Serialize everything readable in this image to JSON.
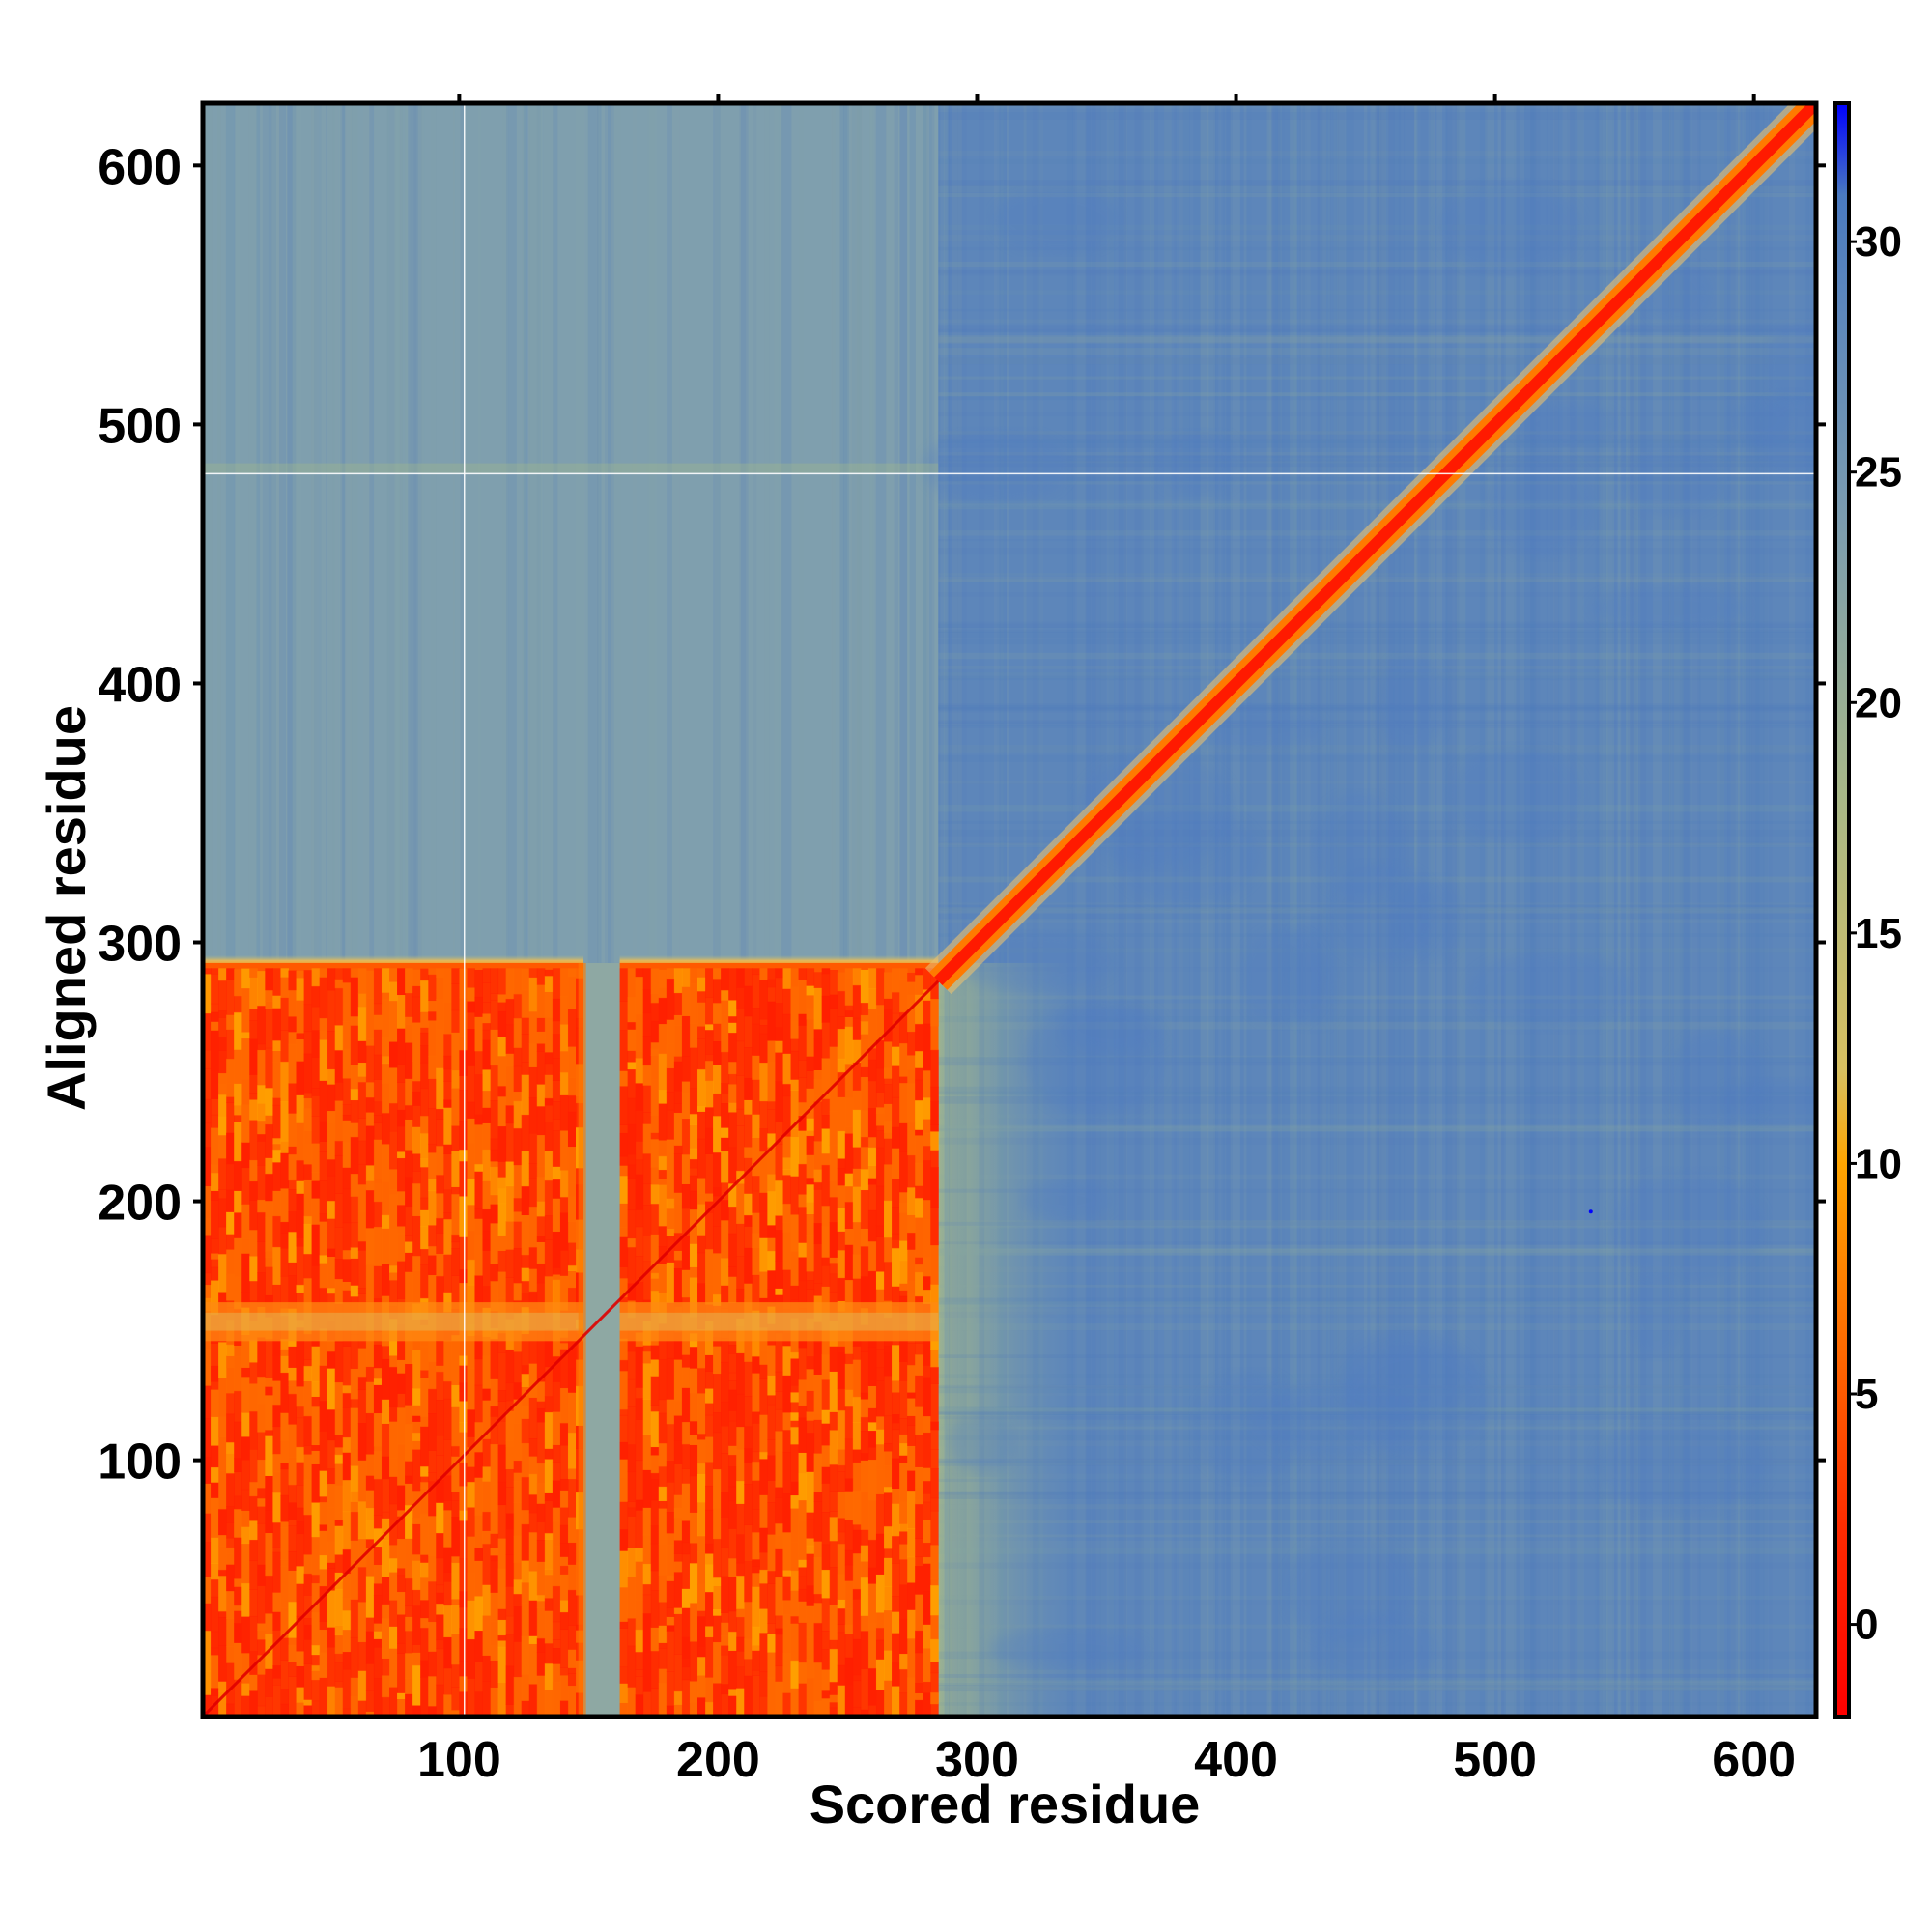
{
  "chart_data": {
    "type": "heatmap",
    "title": "",
    "xlabel": "Scored residue",
    "ylabel": "Aligned residue",
    "xlim": [
      1,
      624
    ],
    "ylim": [
      1,
      624
    ],
    "x_ticks": [
      100,
      200,
      300,
      400,
      500,
      600
    ],
    "y_ticks": [
      100,
      200,
      300,
      400,
      500,
      600
    ],
    "x_tick_labels": [
      "100",
      "200",
      "300",
      "400",
      "500",
      "600"
    ],
    "y_tick_labels": [
      "100",
      "200",
      "300",
      "400",
      "500",
      "600"
    ],
    "colorbar": {
      "range": [
        -2,
        33
      ],
      "ticks": [
        0,
        5,
        10,
        15,
        20,
        25,
        30
      ],
      "tick_labels": [
        "0",
        "5",
        "10",
        "15",
        "20",
        "25",
        "30"
      ],
      "colors": [
        {
          "value": -2,
          "color": "#ff0000"
        },
        {
          "value": 2,
          "color": "#ff2a00"
        },
        {
          "value": 6,
          "color": "#ff6a00"
        },
        {
          "value": 10,
          "color": "#ffa500"
        },
        {
          "value": 12,
          "color": "#d8c060"
        },
        {
          "value": 18,
          "color": "#a8b888"
        },
        {
          "value": 24,
          "color": "#7b9cb0"
        },
        {
          "value": 29,
          "color": "#5a85bd"
        },
        {
          "value": 31,
          "color": "#4a7ac0"
        },
        {
          "value": 33,
          "color": "#0000ff"
        }
      ]
    },
    "regions": [
      {
        "name": "domain-1-block",
        "x": [
          1,
          148
        ],
        "y": [
          1,
          292
        ],
        "level": "low (≈0–6)"
      },
      {
        "name": "gap-strip",
        "x": [
          148,
          162
        ],
        "y": [
          1,
          292
        ],
        "level": "intermediate (≈12–18)"
      },
      {
        "name": "domain-2-block",
        "x": [
          162,
          285
        ],
        "y": [
          1,
          292
        ],
        "level": "low (≈0–6)"
      },
      {
        "name": "diagonal",
        "x": [
          1,
          624
        ],
        "y": [
          1,
          624
        ],
        "level": "≈0 (self)"
      },
      {
        "name": "background",
        "level": "high (≈25–30)"
      }
    ],
    "grid": false
  }
}
